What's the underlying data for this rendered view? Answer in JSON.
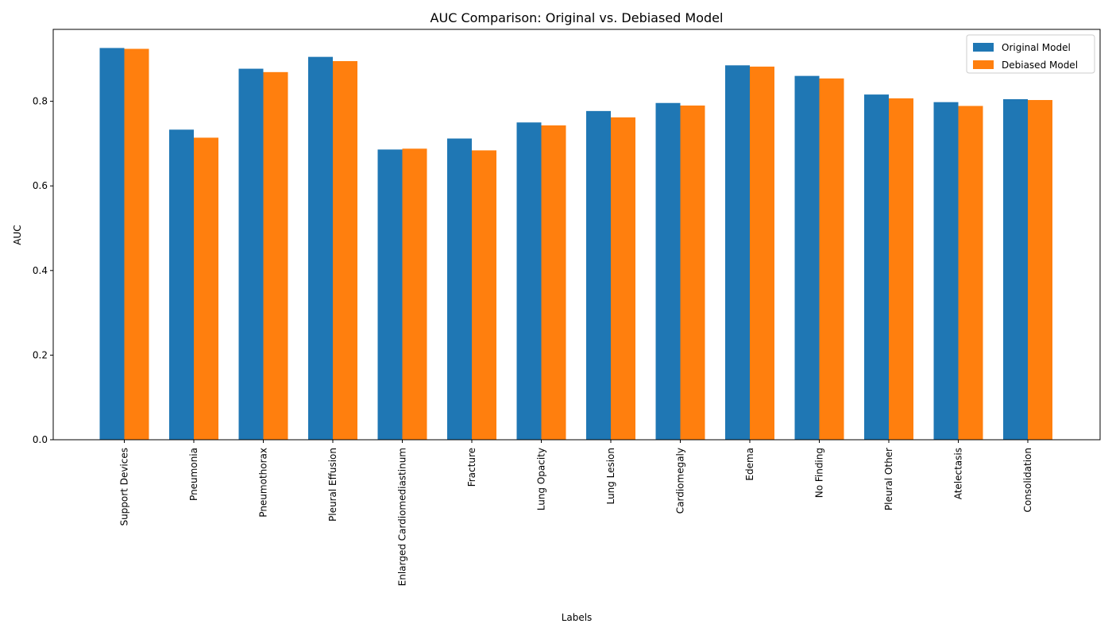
{
  "chart_data": {
    "type": "bar",
    "title": "AUC Comparison: Original vs. Debiased Model",
    "xlabel": "Labels",
    "ylabel": "AUC",
    "ylim": [
      0,
      0.97
    ],
    "yticks": [
      "0.0",
      "0.2",
      "0.4",
      "0.6",
      "0.8"
    ],
    "legend_position": "top-right",
    "grid": false,
    "categories": [
      "Support Devices",
      "Pneumonia",
      "Pneumothorax",
      "Pleural Effusion",
      "Enlarged Cardiomediastinum",
      "Fracture",
      "Lung Opacity",
      "Lung Lesion",
      "Cardiomegaly",
      "Edema",
      "No Finding",
      "Pleural Other",
      "Atelectasis",
      "Consolidation"
    ],
    "series": [
      {
        "name": "Original Model",
        "color": "#1f77b4",
        "values": [
          0.926,
          0.733,
          0.877,
          0.905,
          0.686,
          0.712,
          0.75,
          0.777,
          0.796,
          0.885,
          0.86,
          0.816,
          0.798,
          0.805
        ]
      },
      {
        "name": "Debiased Model",
        "color": "#ff7f0e",
        "values": [
          0.924,
          0.714,
          0.869,
          0.895,
          0.688,
          0.684,
          0.743,
          0.762,
          0.79,
          0.882,
          0.854,
          0.807,
          0.789,
          0.803
        ]
      }
    ]
  }
}
